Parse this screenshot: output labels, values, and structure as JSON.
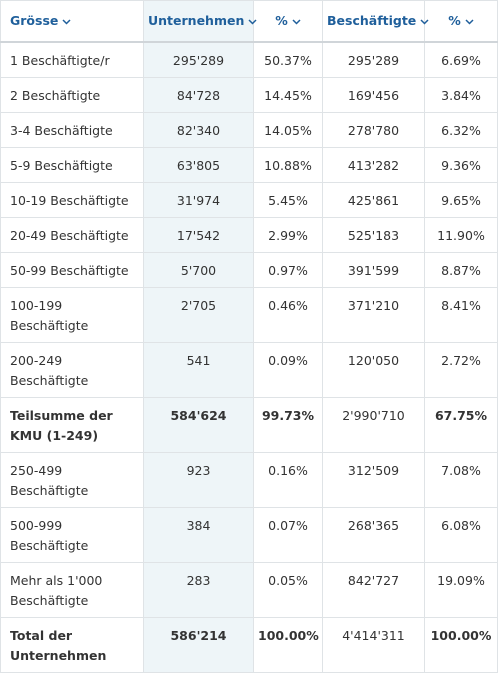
{
  "table": {
    "header": [
      "Grösse",
      "Unternehmen",
      "%",
      "Beschäftigte",
      "%"
    ],
    "rows": [
      [
        "1 Beschäftigte/r",
        "295'289",
        "50.37%",
        "295'289",
        "6.69%"
      ],
      [
        "2 Beschäftigte",
        "84'728",
        "14.45%",
        "169'456",
        "3.84%"
      ],
      [
        "3-4 Beschäftigte",
        "82'340",
        "14.05%",
        "278'780",
        "6.32%"
      ],
      [
        "5-9 Beschäftigte",
        "63'805",
        "10.88%",
        "413'282",
        "9.36%"
      ],
      [
        "10-19 Beschäftigte",
        "31'974",
        "5.45%",
        "425'861",
        "9.65%"
      ],
      [
        "20-49 Beschäftigte",
        "17'542",
        "2.99%",
        "525'183",
        "11.90%"
      ],
      [
        "50-99 Beschäftigte",
        "5'700",
        "0.97%",
        "391'599",
        "8.87%"
      ],
      [
        "100-199 Beschäftigte",
        "2'705",
        "0.46%",
        "371'210",
        "8.41%"
      ],
      [
        "200-249 Beschäftigte",
        "541",
        "0.09%",
        "120'050",
        "2.72%"
      ],
      [
        "Teilsumme der KMU (1-249)",
        "584'624",
        "99.73%",
        "2'990'710",
        "67.75%"
      ],
      [
        "250-499 Beschäftigte",
        "923",
        "0.16%",
        "312'509",
        "7.08%"
      ],
      [
        "500-999 Beschäftigte",
        "384",
        "0.07%",
        "268'365",
        "6.08%"
      ],
      [
        "Mehr als 1'000 Beschäftigte",
        "283",
        "0.05%",
        "842'727",
        "19.09%"
      ],
      [
        "Total der Unternehmen",
        "586'214",
        "100.00%",
        "4'414'311",
        "100.00%"
      ]
    ],
    "bold_rows": [
      9,
      13
    ]
  }
}
